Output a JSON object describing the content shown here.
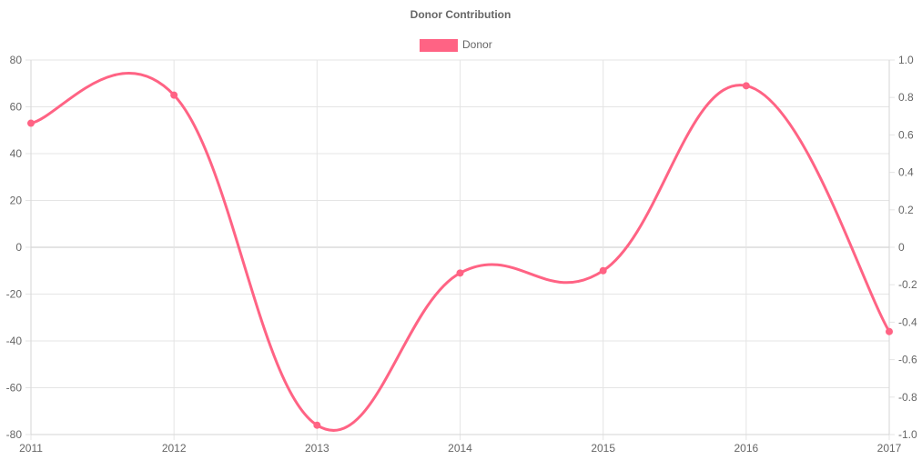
{
  "chart_data": {
    "type": "line",
    "title": "Donor Contribution",
    "categories": [
      "2011",
      "2012",
      "2013",
      "2014",
      "2015",
      "2016",
      "2017"
    ],
    "series": [
      {
        "name": "Donor",
        "values": [
          53,
          65,
          -76,
          -11,
          -10,
          69,
          -36
        ],
        "color": "#ff6384"
      }
    ],
    "ylim": [
      -80,
      80
    ],
    "yticks": [
      80,
      60,
      40,
      20,
      0,
      -20,
      -40,
      -60,
      -80
    ],
    "ylim_right": [
      -1.0,
      1.0
    ],
    "yticks_right": [
      "1.0",
      "0.8",
      "0.6",
      "0.4",
      "0.2",
      "0",
      "-0.2",
      "-0.4",
      "-0.6",
      "-0.8",
      "-1.0"
    ],
    "legend_position": "top",
    "grid": true,
    "smooth": true
  }
}
